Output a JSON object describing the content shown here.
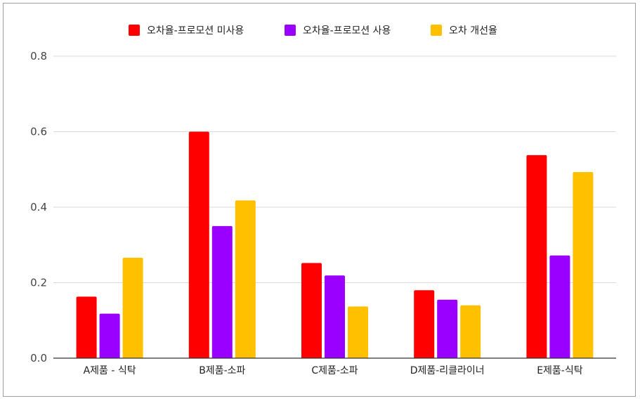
{
  "chart_data": {
    "type": "bar",
    "categories": [
      "A제품 - 식탁",
      "B제품-소파",
      "C제품-소파",
      "D제품-리클라이너",
      "E제품-식탁"
    ],
    "series": [
      {
        "name": "오차율-프로모션 미사용",
        "color": "#ff0000",
        "values": [
          0.163,
          0.6,
          0.252,
          0.18,
          0.538
        ]
      },
      {
        "name": "오차율-프로모션 사용",
        "color": "#9900ff",
        "values": [
          0.118,
          0.35,
          0.219,
          0.155,
          0.272
        ]
      },
      {
        "name": "오차 개선율",
        "color": "#ffc000",
        "values": [
          0.266,
          0.418,
          0.137,
          0.14,
          0.493
        ]
      }
    ],
    "yticks": [
      "0.0",
      "0.2",
      "0.4",
      "0.6",
      "0.8"
    ],
    "ylim": [
      0,
      0.8
    ],
    "grid": true,
    "legend_position": "top-center",
    "title": "",
    "xlabel": "",
    "ylabel": ""
  }
}
